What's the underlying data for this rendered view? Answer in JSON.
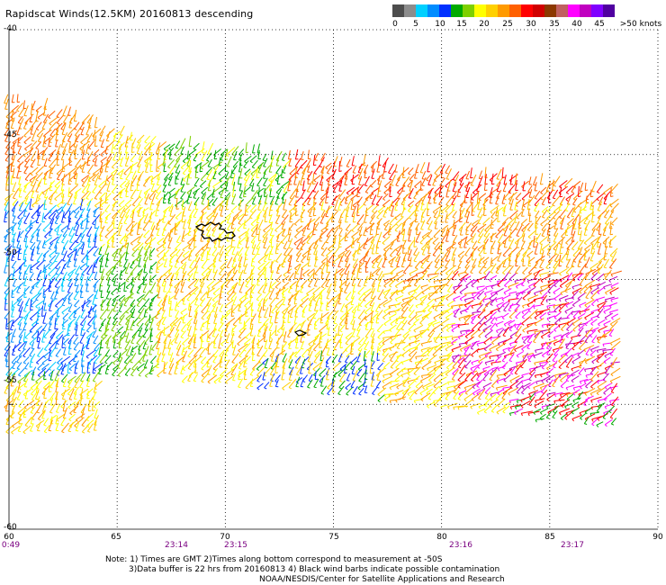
{
  "title": "Rapidscat Winds(12.5KM) 20160813 descending",
  "colorbar": {
    "colors": [
      "#4d4d4d",
      "#8c8c8c",
      "#00d0ff",
      "#008cff",
      "#0030ff",
      "#00aa00",
      "#7ed000",
      "#ffff00",
      "#ffd000",
      "#ff9a00",
      "#ff6000",
      "#ff0000",
      "#d00000",
      "#8c3800",
      "#c06060",
      "#ff00ff",
      "#c000c0",
      "#8000ff",
      "#5000a0"
    ],
    "labels": [
      "0",
      "5",
      "10",
      "15",
      "20",
      "25",
      "30",
      "35",
      "40",
      "45",
      ">50 knots"
    ]
  },
  "map": {
    "y_ticks": [
      "-40",
      "-45",
      "-50",
      "-55",
      "-60"
    ],
    "x_ticks": [
      "60",
      "65",
      "70",
      "75",
      "80",
      "85",
      "90"
    ],
    "time_labels": [
      "0:49",
      "23:14",
      "23:15",
      "23:16",
      "23:17"
    ],
    "lon_range": [
      60,
      90
    ],
    "lat_range": [
      -60,
      -40
    ]
  },
  "notes": {
    "line1": "Note: 1) Times are GMT 2)Times along bottom correspond to measurement at -50S",
    "line2": "3)Data buffer is 22 hrs from 20160813 4) Black wind barbs indicate possible contamination",
    "line3": "NOAA/NESDIS/Center for Satellite Applications and Research"
  }
}
